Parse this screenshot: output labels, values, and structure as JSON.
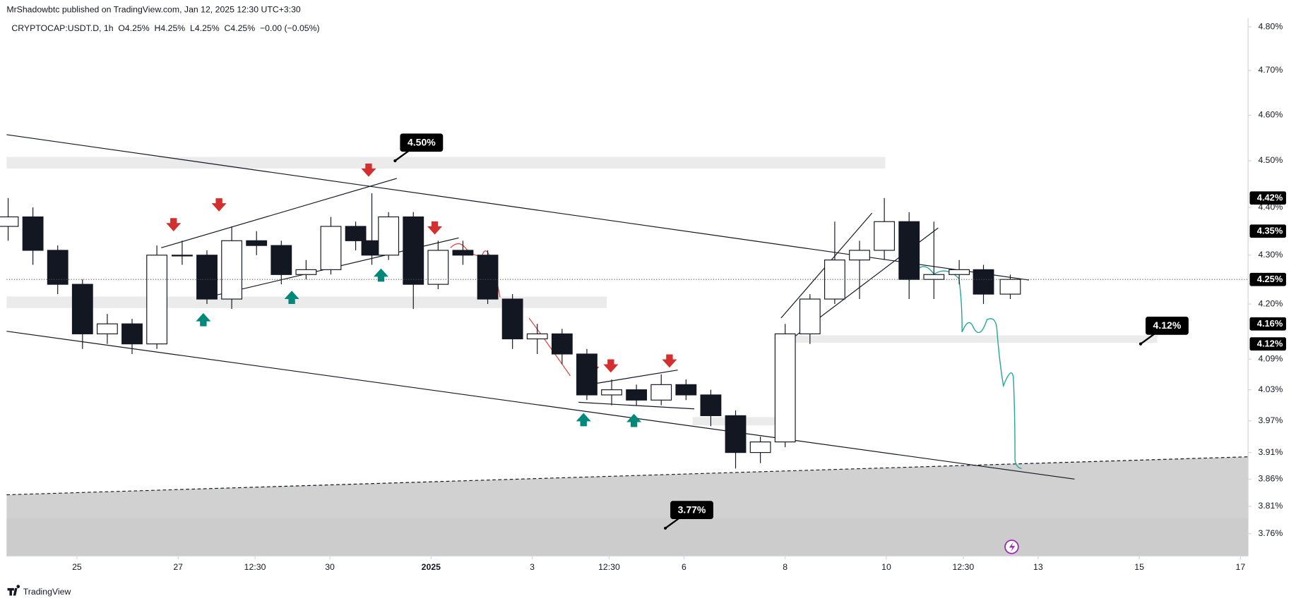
{
  "header": {
    "publisher": "MrShadowbtc published on TradingView.com, Jan 12, 2025 12:30 UTC+3:30",
    "legend": "CRYPTOCAP:USDT.D, 1h  O4.25%  H4.25%  L4.25%  C4.25%  −0.00 (−0.05%)"
  },
  "chart_data": {
    "type": "candlestick",
    "log_scale": true,
    "grid": false,
    "up_color": "#ffffff",
    "down_color": "#131722",
    "xlim": [
      -0.39,
      24.15
    ],
    "ylim": [
      3.72,
      4.82
    ],
    "xticks": [
      {
        "value": 1,
        "label": "25"
      },
      {
        "value": 3,
        "label": "27"
      },
      {
        "value": 4.52,
        "label": "12:30"
      },
      {
        "value": 6,
        "label": "30"
      },
      {
        "value": 8,
        "label": "2025"
      },
      {
        "value": 10,
        "label": "3"
      },
      {
        "value": 11.52,
        "label": "12:30"
      },
      {
        "value": 13,
        "label": "6"
      },
      {
        "value": 15,
        "label": "8"
      },
      {
        "value": 17,
        "label": "10"
      },
      {
        "value": 18.52,
        "label": "12:30"
      },
      {
        "value": 20,
        "label": "13"
      },
      {
        "value": 22,
        "label": "15"
      },
      {
        "value": 24,
        "label": "17"
      }
    ],
    "yticks": [
      {
        "value": 4.8,
        "label": "4.80%"
      },
      {
        "value": 4.7,
        "label": "4.70%"
      },
      {
        "value": 4.6,
        "label": "4.60%"
      },
      {
        "value": 4.5,
        "label": "4.50%"
      },
      {
        "value": 4.4,
        "label": "4.40%"
      },
      {
        "value": 4.3,
        "label": "4.30%"
      },
      {
        "value": 4.2,
        "label": "4.20%"
      },
      {
        "value": 4.09,
        "label": "4.09%"
      },
      {
        "value": 4.03,
        "label": "4.03%"
      },
      {
        "value": 3.97,
        "label": "3.97%"
      },
      {
        "value": 3.91,
        "label": "3.91%"
      },
      {
        "value": 3.86,
        "label": "3.86%"
      },
      {
        "value": 3.81,
        "label": "3.81%"
      },
      {
        "value": 3.76,
        "label": "3.76%"
      }
    ],
    "x": [
      -0.36,
      0.13,
      0.62,
      1.11,
      1.6,
      2.09,
      2.58,
      3.08,
      3.57,
      4.06,
      4.55,
      5.04,
      5.53,
      6.02,
      6.51,
      6.83,
      7.16,
      7.65,
      8.14,
      8.63,
      9.12,
      9.61,
      10.1,
      10.59,
      11.08,
      11.57,
      12.06,
      12.55,
      13.04,
      13.53,
      14.02,
      14.51,
      15.0,
      15.49,
      15.98,
      16.47,
      16.96,
      17.45,
      17.94,
      18.44,
      18.92,
      19.45
    ],
    "open": [
      4.36,
      4.38,
      4.31,
      4.24,
      4.14,
      4.16,
      4.12,
      4.3,
      4.3,
      4.21,
      4.33,
      4.32,
      4.26,
      4.27,
      4.36,
      4.33,
      4.3,
      4.38,
      4.24,
      4.31,
      4.3,
      4.21,
      4.13,
      4.14,
      4.1,
      4.02,
      4.03,
      4.01,
      4.04,
      4.02,
      3.98,
      3.91,
      3.93,
      4.14,
      4.21,
      4.29,
      4.31,
      4.37,
      4.25,
      4.26,
      4.27,
      4.22
    ],
    "high": [
      4.42,
      4.4,
      4.32,
      4.25,
      4.18,
      4.17,
      4.32,
      4.33,
      4.31,
      4.36,
      4.35,
      4.33,
      4.29,
      4.38,
      4.37,
      4.43,
      4.39,
      4.39,
      4.33,
      4.33,
      4.31,
      4.22,
      4.16,
      4.15,
      4.11,
      4.05,
      4.04,
      4.06,
      4.05,
      4.03,
      3.99,
      3.94,
      4.16,
      4.22,
      4.37,
      4.33,
      4.42,
      4.39,
      4.37,
      4.29,
      4.28,
      4.26
    ],
    "low": [
      4.33,
      4.28,
      4.22,
      4.11,
      4.12,
      4.1,
      4.11,
      4.28,
      4.2,
      4.19,
      4.3,
      4.24,
      4.25,
      4.26,
      4.31,
      4.28,
      4.29,
      4.19,
      4.23,
      4.28,
      4.2,
      4.11,
      4.1,
      4.08,
      4.01,
      4.0,
      4.0,
      4.0,
      4.01,
      3.96,
      3.88,
      3.89,
      3.92,
      4.12,
      4.2,
      4.21,
      4.29,
      4.21,
      4.21,
      4.24,
      4.2,
      4.21
    ],
    "close": [
      4.38,
      4.31,
      4.24,
      4.14,
      4.16,
      4.12,
      4.3,
      4.3,
      4.21,
      4.33,
      4.32,
      4.26,
      4.27,
      4.36,
      4.33,
      4.3,
      4.38,
      4.24,
      4.31,
      4.3,
      4.21,
      4.13,
      4.14,
      4.1,
      4.02,
      4.03,
      4.01,
      4.04,
      4.02,
      3.98,
      3.91,
      3.93,
      4.14,
      4.21,
      4.29,
      4.31,
      4.37,
      4.25,
      4.26,
      4.27,
      4.22,
      4.25
    ],
    "price_labels": [
      {
        "value": 4.42,
        "label": "4.42%"
      },
      {
        "value": 4.35,
        "label": "4.35%"
      },
      {
        "value": 4.25,
        "label": "4.25%"
      },
      {
        "value": 4.16,
        "label": "4.16%"
      },
      {
        "value": 4.12,
        "label": "4.12%"
      }
    ],
    "callouts": [
      {
        "value": 4.5,
        "label": "4.50%"
      },
      {
        "value": 4.12,
        "label": "4.12%"
      },
      {
        "value": 3.77,
        "label": "3.77%"
      }
    ]
  },
  "footer": {
    "brand": "TradingView"
  }
}
